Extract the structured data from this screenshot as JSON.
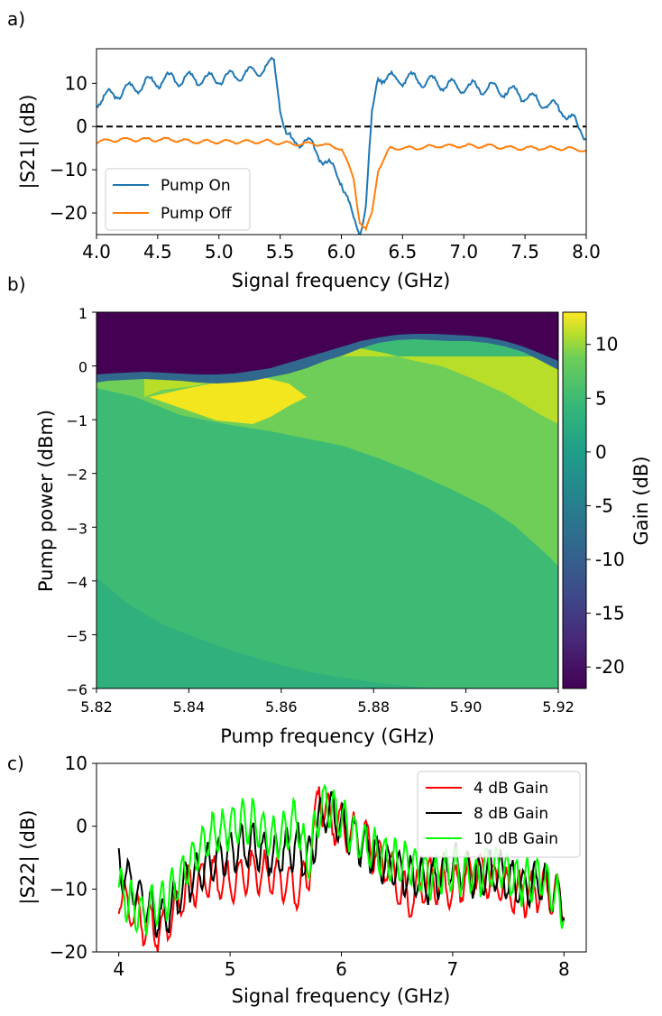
{
  "chart_data": [
    {
      "panel": "a)",
      "type": "line",
      "xlabel": "Signal frequency (GHz)",
      "ylabel": "|S21| (dB)",
      "xlim": [
        4.0,
        8.0
      ],
      "ylim": [
        -25,
        18
      ],
      "xticks": [
        "4.0",
        "4.5",
        "5.0",
        "5.5",
        "6.0",
        "6.5",
        "7.0",
        "7.5",
        "8.0"
      ],
      "yticks": [
        10,
        0,
        -10,
        -20
      ],
      "ytick_labels": [
        "10",
        "0",
        "−10",
        "−20"
      ],
      "reference_line": {
        "y": 0,
        "style": "dashed",
        "color": "#000000"
      },
      "legend": [
        "Pump On",
        "Pump Off"
      ],
      "series": [
        {
          "name": "Pump On",
          "color": "#1f77b4",
          "x": [
            4.0,
            4.2,
            4.4,
            4.6,
            4.8,
            5.0,
            5.2,
            5.4,
            5.45,
            5.5,
            5.55,
            5.6,
            5.7,
            5.8,
            5.9,
            6.0,
            6.05,
            6.1,
            6.15,
            6.2,
            6.25,
            6.3,
            6.4,
            6.6,
            6.8,
            7.0,
            7.2,
            7.4,
            7.6,
            7.8,
            8.0
          ],
          "values": [
            6,
            8,
            10,
            11,
            11,
            11,
            12,
            14,
            15,
            5,
            -2,
            -4,
            -3,
            -6,
            -9,
            -12,
            -17,
            -22,
            -24,
            -18,
            2,
            12,
            11,
            11,
            10,
            9,
            9,
            8,
            6,
            4,
            -2
          ]
        },
        {
          "name": "Pump Off",
          "color": "#ff7f0e",
          "x": [
            4.0,
            4.2,
            4.4,
            4.6,
            4.8,
            5.0,
            5.2,
            5.4,
            5.6,
            5.8,
            6.0,
            6.1,
            6.15,
            6.2,
            6.25,
            6.3,
            6.4,
            6.6,
            6.8,
            7.0,
            7.2,
            7.4,
            7.6,
            7.8,
            8.0
          ],
          "values": [
            -3.5,
            -3,
            -3,
            -3,
            -3.5,
            -3.5,
            -3.5,
            -3.5,
            -4,
            -4,
            -5,
            -12,
            -22,
            -24,
            -20,
            -10,
            -5,
            -5,
            -4.5,
            -4.5,
            -4.5,
            -5,
            -5,
            -5,
            -5.5
          ]
        }
      ]
    },
    {
      "panel": "b)",
      "type": "heatmap",
      "xlabel": "Pump frequency (GHz)",
      "ylabel": "Pump power (dBm)",
      "xlim": [
        5.82,
        5.92
      ],
      "ylim": [
        -6,
        1
      ],
      "xticks": [
        "5.82",
        "5.84",
        "5.86",
        "5.88",
        "5.90",
        "5.92"
      ],
      "yticks": [
        1,
        0,
        -1,
        -2,
        -3,
        -4,
        -5,
        -6
      ],
      "ytick_labels": [
        "1",
        "0",
        "−1",
        "−2",
        "−3",
        "−4",
        "−5",
        "−6"
      ],
      "colorbar": {
        "label": "Gain (dB)",
        "range": [
          -22,
          13
        ],
        "ticks": [
          10,
          5,
          0,
          -5,
          -10,
          -15,
          -20
        ],
        "tick_labels": [
          "10",
          "5",
          "0",
          "-5",
          "-10",
          "-15",
          "-20"
        ]
      },
      "regions": {
        "low_gain_threshold_dbm": [
          0.3,
          0.2,
          0.3,
          0.5,
          0.4,
          0.5,
          0.9
        ],
        "high_gain_peak_db": 12,
        "mid_gain_db": 7,
        "base_gain_db": 3,
        "lower_band_db": 2
      }
    },
    {
      "panel": "c)",
      "type": "line",
      "xlabel": "Signal frequency (GHz)",
      "ylabel": "|S22| (dB)",
      "xlim": [
        3.8,
        8.2
      ],
      "ylim": [
        -20,
        10
      ],
      "xticks": [
        "4",
        "5",
        "6",
        "7",
        "8"
      ],
      "yticks": [
        10,
        0,
        -10,
        -20
      ],
      "ytick_labels": [
        "10",
        "0",
        "−10",
        "−20"
      ],
      "legend": [
        "4 dB Gain",
        "8 dB Gain",
        "10 dB Gain"
      ],
      "series": [
        {
          "name": "4 dB Gain",
          "color": "#ff0000",
          "x": [
            4.0,
            4.2,
            4.4,
            4.6,
            4.8,
            5.0,
            5.2,
            5.4,
            5.6,
            5.7,
            5.8,
            5.85,
            5.9,
            6.0,
            6.2,
            6.4,
            6.6,
            6.8,
            7.0,
            7.2,
            7.4,
            7.6,
            7.8,
            8.0
          ],
          "values": [
            -11,
            -15,
            -17,
            -10,
            -8,
            -9,
            -7,
            -8,
            -10,
            -8,
            6,
            2,
            1,
            0,
            -2,
            -6,
            -12,
            -8,
            -10,
            -7,
            -9,
            -11,
            -10,
            -12
          ]
        },
        {
          "name": "8 dB Gain",
          "color": "#000000",
          "x": [
            4.0,
            4.2,
            4.4,
            4.6,
            4.8,
            5.0,
            5.2,
            5.4,
            5.6,
            5.7,
            5.8,
            5.85,
            5.9,
            6.0,
            6.2,
            6.4,
            6.6,
            6.8,
            7.0,
            7.2,
            7.4,
            7.6,
            7.8,
            8.0
          ],
          "values": [
            -6,
            -12,
            -15,
            -9,
            -6,
            -4,
            -3,
            -5,
            -3,
            -6,
            1,
            2,
            3,
            0,
            -3,
            -6,
            -8,
            -9,
            -6,
            -8,
            -7,
            -10,
            -9,
            -12
          ]
        },
        {
          "name": "10 dB Gain",
          "color": "#00ff00",
          "x": [
            4.0,
            4.2,
            4.4,
            4.6,
            4.8,
            5.0,
            5.2,
            5.4,
            5.6,
            5.7,
            5.8,
            5.85,
            5.9,
            6.0,
            6.2,
            6.4,
            6.6,
            6.8,
            7.0,
            7.2,
            7.4,
            7.6,
            7.8,
            8.0
          ],
          "values": [
            -10,
            -14,
            -12,
            -7,
            -2,
            0,
            1,
            -2,
            1,
            -6,
            2,
            4,
            3,
            1,
            -3,
            -5,
            -6,
            -8,
            -7,
            -8,
            -6,
            -9,
            -8,
            -13
          ]
        }
      ]
    }
  ]
}
